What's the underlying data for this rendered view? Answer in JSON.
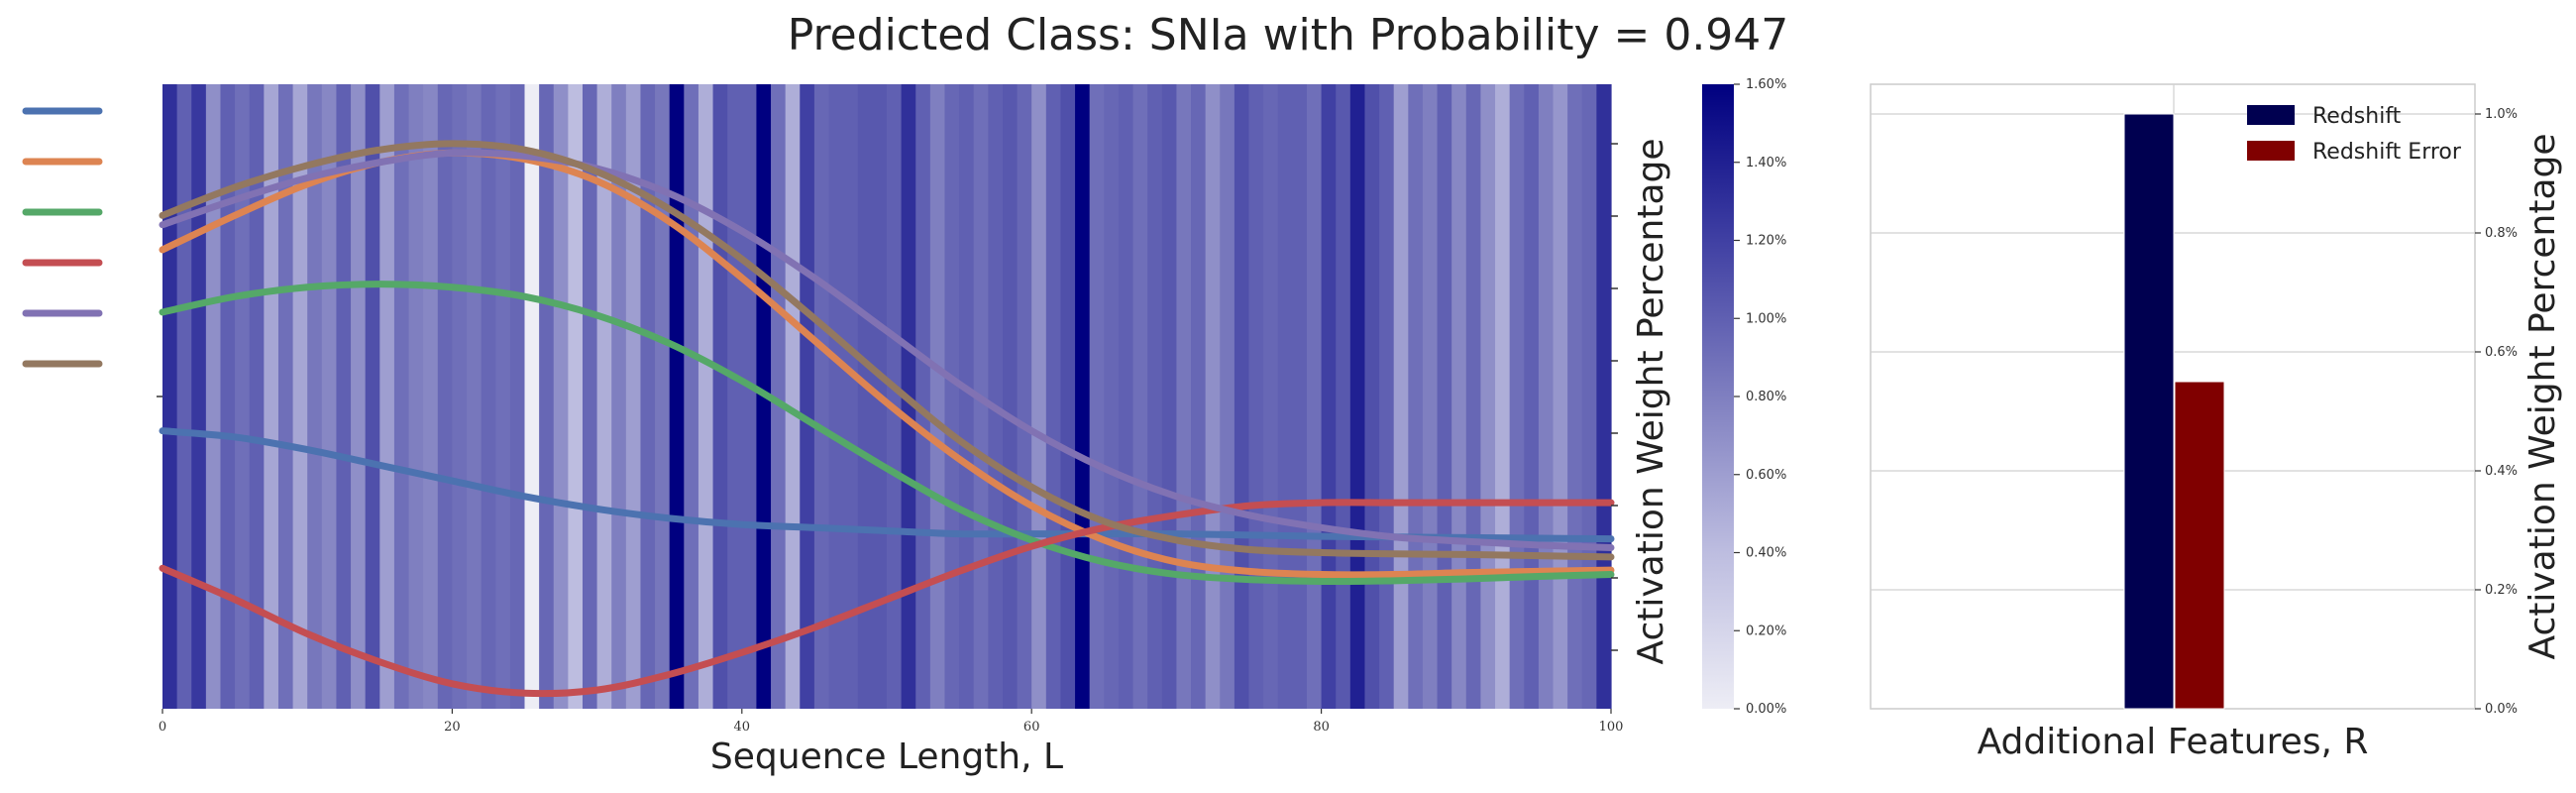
{
  "title": "Predicted Class: SNIa with Probability = 0.947",
  "chart_data": [
    {
      "type": "line",
      "panel": "light-curve-attention",
      "xlabel": "Sequence Length, L",
      "xlim": [
        0,
        100
      ],
      "xticks": [
        "0",
        "20",
        "40",
        "60",
        "80",
        "100"
      ],
      "colorbar": {
        "label": "Activation Weight Percentage",
        "range": [
          0.0,
          1.6
        ],
        "ticks": [
          "0.00%",
          "0.20%",
          "0.40%",
          "0.60%",
          "0.80%",
          "1.00%",
          "1.20%",
          "1.40%",
          "1.60%"
        ],
        "colormap": "white-to-navy"
      },
      "attention_weights": [
        1.3,
        1.0,
        1.25,
        0.7,
        1.0,
        0.9,
        1.0,
        0.55,
        0.9,
        0.55,
        0.85,
        0.75,
        1.0,
        0.7,
        1.1,
        0.6,
        0.9,
        0.8,
        0.75,
        0.95,
        0.9,
        0.85,
        0.95,
        0.9,
        0.95,
        0.0,
        0.95,
        0.7,
        0.4,
        0.95,
        0.5,
        0.8,
        0.6,
        0.95,
        0.85,
        1.6,
        0.9,
        0.5,
        1.1,
        1.0,
        1.0,
        1.6,
        0.9,
        0.5,
        1.2,
        0.95,
        1.0,
        1.0,
        1.05,
        1.05,
        1.0,
        1.3,
        1.0,
        0.8,
        0.95,
        1.0,
        0.9,
        1.0,
        1.05,
        0.95,
        0.7,
        1.0,
        1.1,
        1.6,
        0.9,
        0.95,
        1.0,
        0.9,
        1.0,
        1.05,
        0.85,
        0.95,
        0.7,
        0.85,
        1.1,
        1.0,
        0.95,
        1.0,
        1.0,
        0.9,
        1.2,
        1.05,
        1.4,
        1.1,
        1.0,
        0.6,
        0.9,
        0.8,
        1.0,
        0.75,
        0.95,
        0.7,
        0.5,
        0.9,
        1.0,
        0.8,
        0.65,
        0.9,
        0.95,
        1.3
      ],
      "x": [
        0,
        5,
        10,
        15,
        20,
        25,
        30,
        35,
        40,
        45,
        50,
        55,
        60,
        65,
        70,
        75,
        80,
        85,
        90,
        95,
        100
      ],
      "series": [
        {
          "color": "#4c72b0",
          "values": [
            0.445,
            0.435,
            0.415,
            0.39,
            0.365,
            0.34,
            0.32,
            0.305,
            0.295,
            0.29,
            0.285,
            0.28,
            0.28,
            0.28,
            0.28,
            0.278,
            0.276,
            0.275,
            0.274,
            0.273,
            0.272
          ]
        },
        {
          "color": "#dd8452",
          "values": [
            0.735,
            0.79,
            0.84,
            0.875,
            0.89,
            0.88,
            0.845,
            0.78,
            0.69,
            0.59,
            0.49,
            0.4,
            0.325,
            0.27,
            0.235,
            0.22,
            0.215,
            0.215,
            0.218,
            0.22,
            0.222
          ]
        },
        {
          "color": "#55a868",
          "values": [
            0.635,
            0.66,
            0.675,
            0.68,
            0.675,
            0.66,
            0.63,
            0.585,
            0.525,
            0.455,
            0.385,
            0.32,
            0.27,
            0.235,
            0.215,
            0.207,
            0.204,
            0.205,
            0.208,
            0.212,
            0.215
          ]
        },
        {
          "color": "#c44e52",
          "values": [
            0.225,
            0.175,
            0.12,
            0.075,
            0.04,
            0.025,
            0.03,
            0.055,
            0.09,
            0.13,
            0.175,
            0.22,
            0.26,
            0.29,
            0.31,
            0.325,
            0.33,
            0.33,
            0.33,
            0.33,
            0.33
          ]
        },
        {
          "color": "#8172b3",
          "values": [
            0.775,
            0.815,
            0.85,
            0.875,
            0.89,
            0.885,
            0.865,
            0.825,
            0.765,
            0.69,
            0.605,
            0.52,
            0.445,
            0.385,
            0.34,
            0.31,
            0.29,
            0.275,
            0.268,
            0.262,
            0.258
          ]
        },
        {
          "color": "#937860",
          "values": [
            0.79,
            0.835,
            0.87,
            0.895,
            0.905,
            0.895,
            0.86,
            0.8,
            0.72,
            0.625,
            0.525,
            0.43,
            0.355,
            0.3,
            0.27,
            0.255,
            0.25,
            0.248,
            0.247,
            0.245,
            0.243
          ]
        }
      ]
    },
    {
      "type": "bar",
      "panel": "additional-features",
      "xlabel": "Additional Features, R",
      "ylabel": "Activation Weight Percentage",
      "ylim": [
        0.0,
        1.05
      ],
      "yticks": [
        "0.0%",
        "0.2%",
        "0.4%",
        "0.6%",
        "0.8%",
        "1.0%"
      ],
      "legend_position": "top-right",
      "series": [
        {
          "name": "Redshift",
          "value": 1.0,
          "color": "#000050"
        },
        {
          "name": "Redshift Error",
          "value": 0.55,
          "color": "#800000"
        }
      ]
    }
  ]
}
